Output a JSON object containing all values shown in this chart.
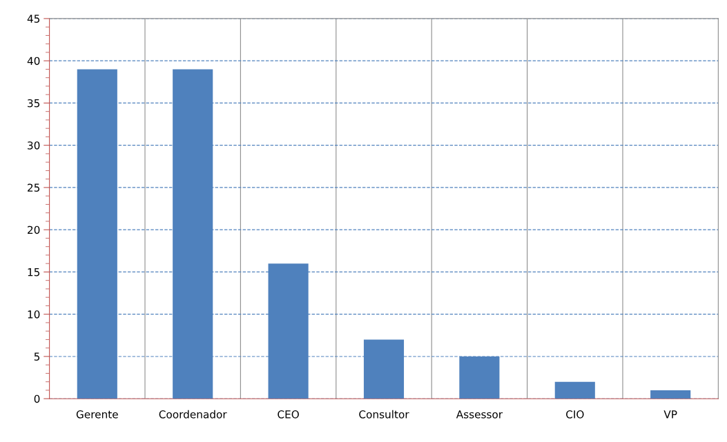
{
  "chart_data": {
    "type": "bar",
    "categories": [
      "Gerente",
      "Coordenador",
      "CEO",
      "Consultor",
      "Assessor",
      "CIO",
      "VP"
    ],
    "values": [
      39,
      39,
      16,
      7,
      5,
      2,
      1
    ],
    "color": "#4f81bd",
    "ylim": [
      0,
      45
    ],
    "yticks": [
      0,
      5,
      10,
      15,
      20,
      25,
      30,
      35,
      40,
      45
    ],
    "grid": true
  }
}
